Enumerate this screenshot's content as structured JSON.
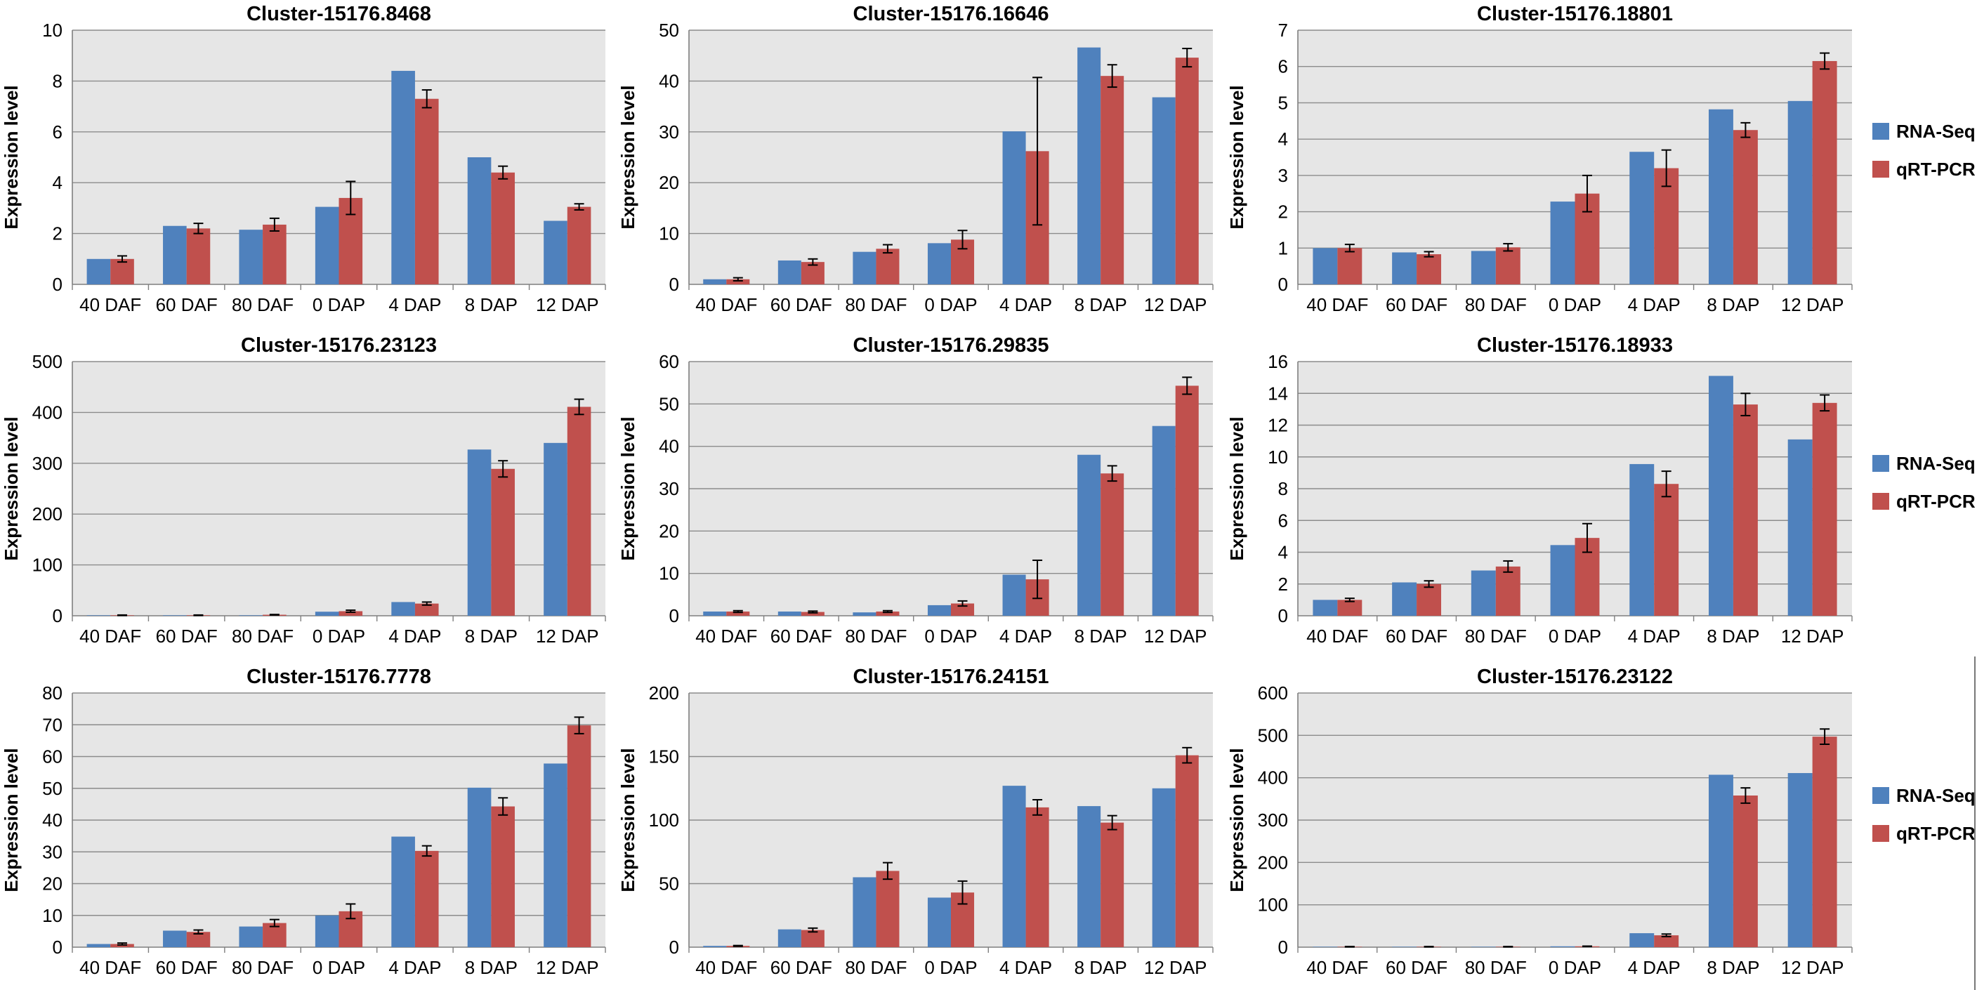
{
  "colors": {
    "rna_seq": "#4F81BD",
    "qrt_pcr": "#C0504D",
    "plot_bg": "#E6E6E6",
    "grid": "#8C8C8C"
  },
  "legend": {
    "series": [
      "RNA-Seq",
      "qRT-PCR"
    ]
  },
  "chart_data": [
    {
      "type": "bar",
      "title": "Cluster-15176.8468",
      "ylabel": "Expression level",
      "ylim": [
        0,
        10
      ],
      "yticks": [
        0,
        2,
        4,
        6,
        8,
        10
      ],
      "categories": [
        "40 DAF",
        "60 DAF",
        "80 DAF",
        "0 DAP",
        "4 DAP",
        "8 DAP",
        "12 DAP"
      ],
      "series": [
        {
          "name": "RNA-Seq",
          "values": [
            1.0,
            2.3,
            2.15,
            3.05,
            8.4,
            5.0,
            2.5
          ]
        },
        {
          "name": "qRT-PCR",
          "values": [
            1.0,
            2.2,
            2.35,
            3.4,
            7.3,
            4.4,
            3.05
          ],
          "errors": [
            0.12,
            0.2,
            0.25,
            0.65,
            0.35,
            0.25,
            0.12
          ]
        }
      ]
    },
    {
      "type": "bar",
      "title": "Cluster-15176.16646",
      "ylabel": "Expression level",
      "ylim": [
        0,
        50
      ],
      "yticks": [
        0,
        10,
        20,
        30,
        40,
        50
      ],
      "categories": [
        "40 DAF",
        "60 DAF",
        "80 DAF",
        "0 DAP",
        "4 DAP",
        "8 DAP",
        "12 DAP"
      ],
      "series": [
        {
          "name": "RNA-Seq",
          "values": [
            1.0,
            4.7,
            6.4,
            8.1,
            30.1,
            46.6,
            36.8
          ]
        },
        {
          "name": "qRT-PCR",
          "values": [
            1.0,
            4.4,
            7.0,
            8.8,
            26.2,
            41.0,
            44.6
          ],
          "errors": [
            0.3,
            0.6,
            0.8,
            1.8,
            14.5,
            2.2,
            1.8
          ]
        }
      ]
    },
    {
      "type": "bar",
      "title": "Cluster-15176.18801",
      "ylabel": "Expression level",
      "ylim": [
        0,
        7
      ],
      "yticks": [
        0,
        1,
        2,
        3,
        4,
        5,
        6,
        7
      ],
      "categories": [
        "40 DAF",
        "60 DAF",
        "80 DAF",
        "0 DAP",
        "4 DAP",
        "8 DAP",
        "12 DAP"
      ],
      "series": [
        {
          "name": "RNA-Seq",
          "values": [
            1.0,
            0.88,
            0.92,
            2.28,
            3.65,
            4.82,
            5.05
          ]
        },
        {
          "name": "qRT-PCR",
          "values": [
            1.0,
            0.83,
            1.02,
            2.5,
            3.2,
            4.25,
            6.15
          ],
          "errors": [
            0.1,
            0.07,
            0.1,
            0.5,
            0.5,
            0.2,
            0.22
          ]
        }
      ]
    },
    {
      "type": "bar",
      "title": "Cluster-15176.23123",
      "ylabel": "Expression level",
      "ylim": [
        0,
        500
      ],
      "yticks": [
        0,
        100,
        200,
        300,
        400,
        500
      ],
      "categories": [
        "40 DAF",
        "60 DAF",
        "80 DAF",
        "0 DAP",
        "4 DAP",
        "8 DAP",
        "12 DAP"
      ],
      "series": [
        {
          "name": "RNA-Seq",
          "values": [
            1,
            1,
            1,
            8,
            27,
            327,
            340
          ]
        },
        {
          "name": "qRT-PCR",
          "values": [
            1,
            1,
            2,
            9,
            24,
            289,
            411
          ],
          "errors": [
            0.5,
            0.5,
            0.5,
            2,
            3,
            16,
            15
          ]
        }
      ]
    },
    {
      "type": "bar",
      "title": "Cluster-15176.29835",
      "ylabel": "Expression level",
      "ylim": [
        0,
        60
      ],
      "yticks": [
        0,
        10,
        20,
        30,
        40,
        50,
        60
      ],
      "categories": [
        "40 DAF",
        "60 DAF",
        "80 DAF",
        "0 DAP",
        "4 DAP",
        "8 DAP",
        "12 DAP"
      ],
      "series": [
        {
          "name": "RNA-Seq",
          "values": [
            1.0,
            1.0,
            0.8,
            2.5,
            9.7,
            38.0,
            44.8
          ]
        },
        {
          "name": "qRT-PCR",
          "values": [
            1.0,
            0.9,
            1.0,
            2.9,
            8.6,
            33.6,
            54.3
          ],
          "errors": [
            0.2,
            0.2,
            0.2,
            0.6,
            4.5,
            1.8,
            2.0
          ]
        }
      ]
    },
    {
      "type": "bar",
      "title": "Cluster-15176.18933",
      "ylabel": "Expression level",
      "ylim": [
        0,
        16
      ],
      "yticks": [
        0,
        2,
        4,
        6,
        8,
        10,
        12,
        14,
        16
      ],
      "categories": [
        "40 DAF",
        "60 DAF",
        "80 DAF",
        "0 DAP",
        "4 DAP",
        "8 DAP",
        "12 DAP"
      ],
      "series": [
        {
          "name": "RNA-Seq",
          "values": [
            1.0,
            2.1,
            2.85,
            4.45,
            9.55,
            15.1,
            11.1
          ]
        },
        {
          "name": "qRT-PCR",
          "values": [
            1.0,
            2.0,
            3.1,
            4.9,
            8.3,
            13.3,
            13.4
          ],
          "errors": [
            0.1,
            0.2,
            0.35,
            0.9,
            0.8,
            0.7,
            0.5
          ]
        }
      ]
    },
    {
      "type": "bar",
      "title": "Cluster-15176.7778",
      "ylabel": "Expression level",
      "ylim": [
        0,
        80
      ],
      "yticks": [
        0,
        10,
        20,
        30,
        40,
        50,
        60,
        70,
        80
      ],
      "categories": [
        "40 DAF",
        "60 DAF",
        "80 DAF",
        "0 DAP",
        "4 DAP",
        "8 DAP",
        "12 DAP"
      ],
      "series": [
        {
          "name": "RNA-Seq",
          "values": [
            1.0,
            5.2,
            6.5,
            10.0,
            34.8,
            50.2,
            57.8
          ]
        },
        {
          "name": "qRT-PCR",
          "values": [
            1.0,
            4.8,
            7.6,
            11.3,
            30.3,
            44.3,
            69.8
          ],
          "errors": [
            0.3,
            0.6,
            1.1,
            2.3,
            1.6,
            2.7,
            2.6
          ]
        }
      ]
    },
    {
      "type": "bar",
      "title": "Cluster-15176.24151",
      "ylabel": "Expression level",
      "ylim": [
        0,
        200
      ],
      "yticks": [
        0,
        50,
        100,
        150,
        200
      ],
      "categories": [
        "40 DAF",
        "60 DAF",
        "80 DAF",
        "0 DAP",
        "4 DAP",
        "8 DAP",
        "12 DAP"
      ],
      "series": [
        {
          "name": "RNA-Seq",
          "values": [
            1,
            14,
            55,
            39,
            127,
            111,
            125
          ]
        },
        {
          "name": "qRT-PCR",
          "values": [
            1,
            13.5,
            60,
            43,
            110,
            98,
            151
          ],
          "errors": [
            0.3,
            1.5,
            6.5,
            9,
            6,
            5.5,
            6
          ]
        }
      ]
    },
    {
      "type": "bar",
      "title": "Cluster-15176.23122",
      "ylabel": "Expression level",
      "ylim": [
        0,
        600
      ],
      "yticks": [
        0,
        100,
        200,
        300,
        400,
        500,
        600
      ],
      "categories": [
        "40 DAF",
        "60 DAF",
        "80 DAF",
        "0 DAP",
        "4 DAP",
        "8 DAP",
        "12 DAP"
      ],
      "series": [
        {
          "name": "RNA-Seq",
          "values": [
            1,
            1,
            1,
            2,
            33,
            407,
            411
          ]
        },
        {
          "name": "qRT-PCR",
          "values": [
            1,
            1,
            1,
            2,
            28,
            358,
            497
          ],
          "errors": [
            0.5,
            0.5,
            0.5,
            0.5,
            3,
            18,
            18
          ]
        }
      ]
    }
  ]
}
